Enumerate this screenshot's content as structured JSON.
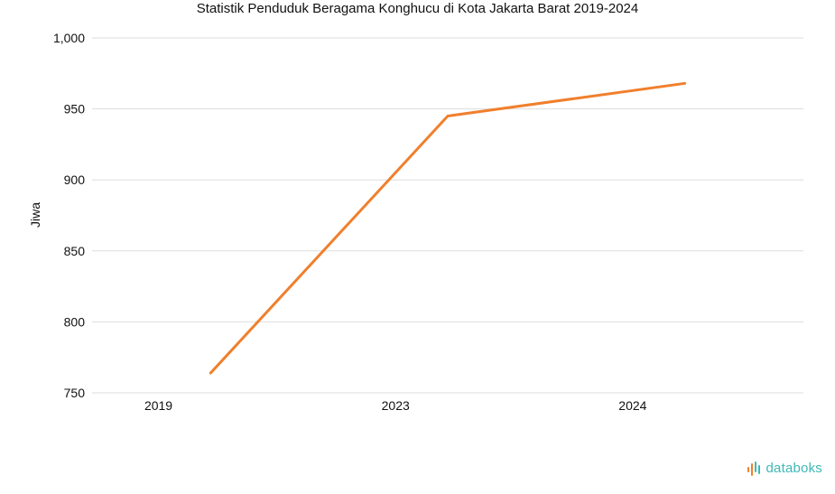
{
  "chart_data": {
    "type": "line",
    "title": "Statistik Penduduk Beragama Konghucu di Kota Jakarta Barat 2019-2024",
    "xlabel": "",
    "ylabel": "Jiwa",
    "categories": [
      "2019",
      "2023",
      "2024"
    ],
    "series": [
      {
        "values": [
          764,
          945,
          968
        ],
        "color": "#f07f2c"
      }
    ],
    "ylim": [
      750,
      1000
    ],
    "yticks": [
      750,
      800,
      850,
      900,
      950,
      1000
    ],
    "ytick_labels": [
      "750",
      "800",
      "850",
      "900",
      "950",
      "1,000"
    ],
    "grid": true,
    "legend": "none"
  },
  "brand": {
    "logo_text": "databoks",
    "logo_color": "#3fb8b5",
    "logo_accent": "#f07f2c"
  }
}
